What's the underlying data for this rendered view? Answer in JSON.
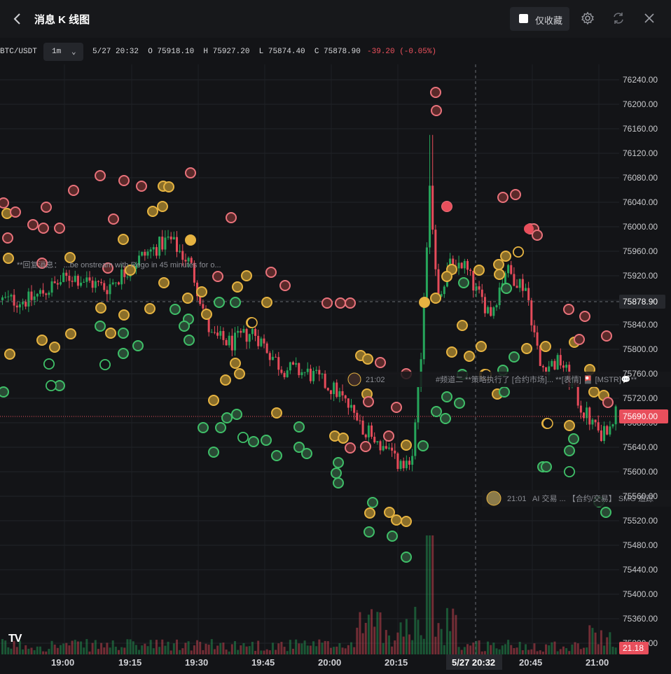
{
  "header": {
    "title": "消息 K 线图",
    "favorites_label": "仅收藏",
    "back_icon": "chevron-left-icon",
    "settings_icon": "gear-icon",
    "refresh_icon": "refresh-icon",
    "close_icon": "close-icon"
  },
  "info": {
    "symbol": "BTC/USDT",
    "interval": "1m",
    "ohlc_text": "5/27 20:32  O 75918.10  H 75927.20  L 75874.40  C 75878.90",
    "change_text": "-39.20 (-0.05%)"
  },
  "colors": {
    "up": "#26a65b",
    "down": "#e64b5a",
    "background": "#131417",
    "price_tag_last": "#e84f5c",
    "price_tag_cross": "#26282d"
  },
  "axis": {
    "y_ticks": [
      "76240.00",
      "76200.00",
      "76160.00",
      "76120.00",
      "76080.00",
      "76040.00",
      "76000.00",
      "75960.00",
      "75920.00",
      "75880.00",
      "75840.00",
      "75800.00",
      "75760.00",
      "75720.00",
      "75680.00",
      "75640.00",
      "75600.00",
      "75560.00",
      "75520.00",
      "75480.00",
      "75440.00",
      "75400.00",
      "75360.00",
      "75320.00"
    ],
    "x_ticks": [
      "19:00",
      "19:15",
      "19:30",
      "19:45",
      "20:00",
      "20:15",
      "20:45",
      "21:00"
    ],
    "crosshair_time": "5/27 20:32",
    "crosshair_price": "75878.90",
    "last_price": "75690.00",
    "volume_label": "21.18"
  },
  "news_ticker": {
    "row1": "**回复消息：   ...be onstream with Rego in 45 minutes for o...",
    "row2_time": "21:02",
    "row2_text": "#频道二 **策略执行了 [合约市场]... **[表情] 🎴 [MSTR]💬**",
    "row3_time": "21:01",
    "row3_text": "AI 交易 ... 【合约/交易】 SMG 追踪"
  },
  "watermark": "TV",
  "chart_data": {
    "type": "candlestick",
    "symbol": "BTC/USDT",
    "interval": "1m",
    "ylim": [
      75300,
      76260
    ],
    "x": [
      "19:00",
      "19:15",
      "19:30",
      "19:45",
      "20:00",
      "20:15",
      "20:32",
      "20:45",
      "21:00"
    ],
    "highlighted_bar": {
      "time": "5/27 20:32",
      "open": 75918.1,
      "high": 75927.2,
      "low": 75874.4,
      "close": 75878.9,
      "change": -39.2,
      "change_pct": -0.05
    },
    "last_price": 75690.0
  }
}
